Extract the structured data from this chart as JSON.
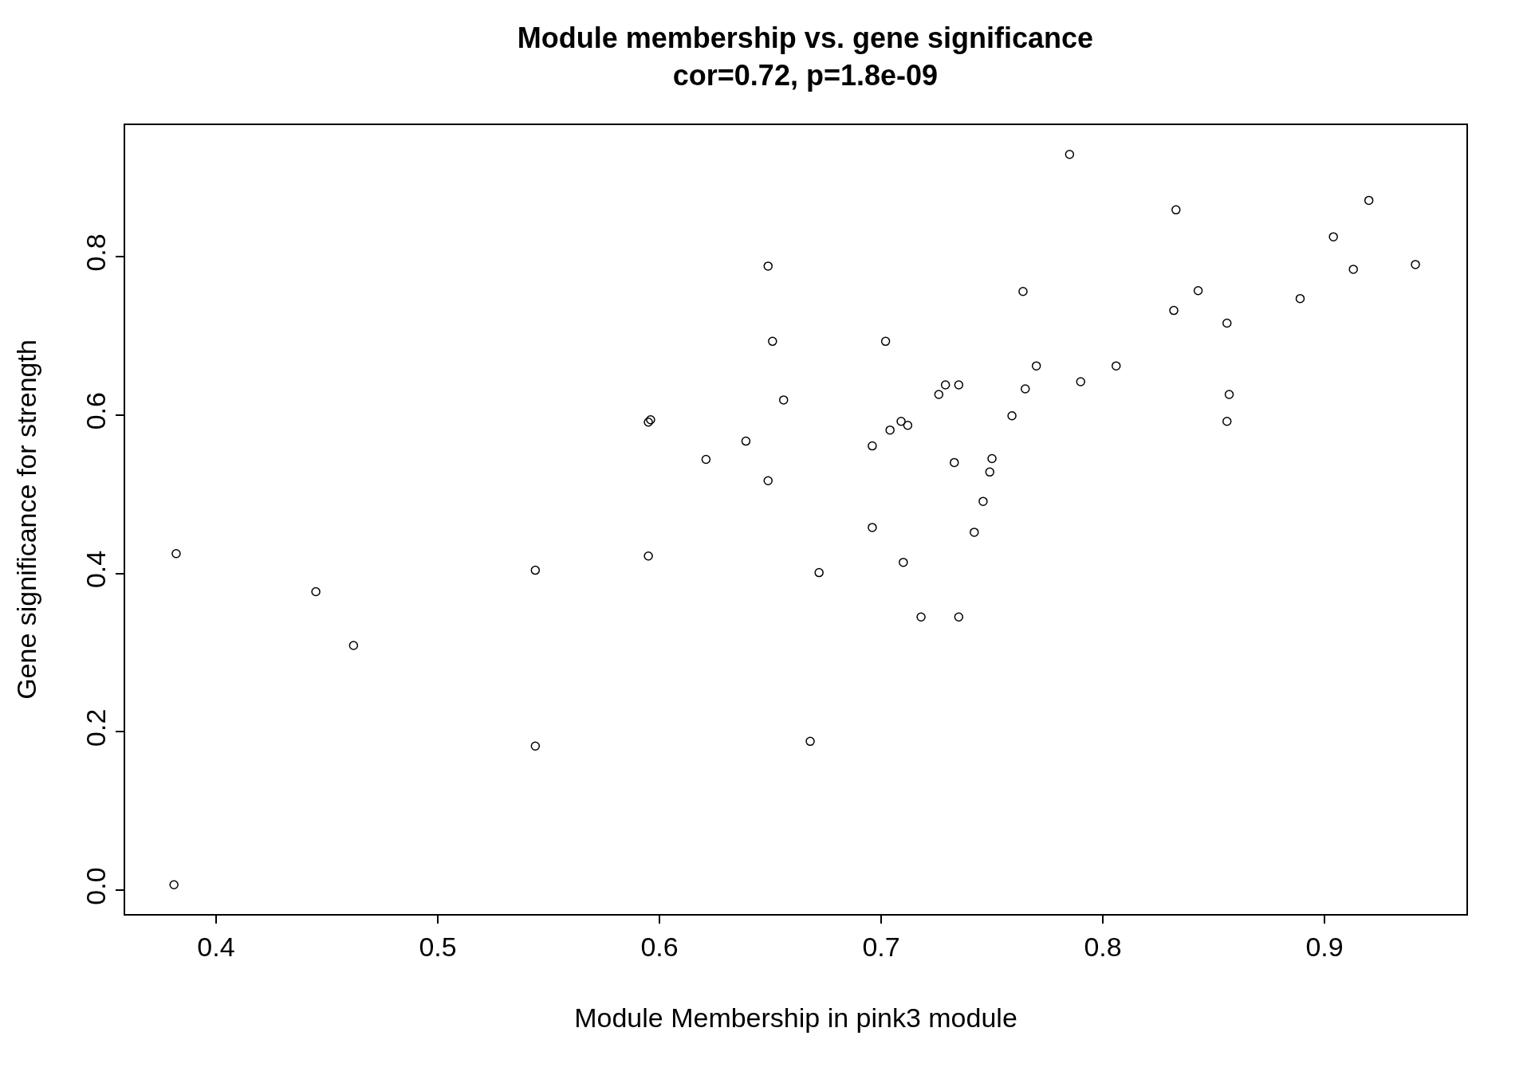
{
  "chart_data": {
    "type": "scatter",
    "title": "Module membership vs. gene significance",
    "subtitle": "cor=0.72, p=1.8e-09",
    "xlabel": "Module Membership in pink3 module",
    "ylabel": "Gene significance for strength",
    "series": [
      {
        "color": "#000000",
        "x": [
          0.785,
          0.833,
          0.92,
          0.904,
          0.913,
          0.941,
          0.889,
          0.843,
          0.832,
          0.856,
          0.857,
          0.856,
          0.806,
          0.79,
          0.764,
          0.77,
          0.765,
          0.759,
          0.75,
          0.749,
          0.746,
          0.742,
          0.735,
          0.718,
          0.71,
          0.696,
          0.696,
          0.702,
          0.704,
          0.709,
          0.712,
          0.726,
          0.729,
          0.735,
          0.733,
          0.649,
          0.651,
          0.656,
          0.649,
          0.639,
          0.621,
          0.595,
          0.596,
          0.595,
          0.672,
          0.668,
          0.544,
          0.544,
          0.462,
          0.445,
          0.382,
          0.381
        ],
        "values": [
          0.929,
          0.859,
          0.871,
          0.825,
          0.784,
          0.79,
          0.747,
          0.757,
          0.732,
          0.716,
          0.626,
          0.592,
          0.662,
          0.642,
          0.756,
          0.662,
          0.633,
          0.599,
          0.545,
          0.528,
          0.491,
          0.452,
          0.345,
          0.345,
          0.414,
          0.561,
          0.458,
          0.693,
          0.581,
          0.592,
          0.587,
          0.626,
          0.638,
          0.638,
          0.54,
          0.788,
          0.693,
          0.619,
          0.517,
          0.567,
          0.544,
          0.591,
          0.594,
          0.422,
          0.401,
          0.188,
          0.404,
          0.182,
          0.309,
          0.377,
          0.425,
          0.007
        ]
      }
    ],
    "marker": "circle",
    "legend": false,
    "xlim": [
      0.359,
      0.964
    ],
    "xticks": [
      0.4,
      0.5,
      0.6,
      0.7,
      0.8,
      0.9
    ],
    "ylim": [
      -0.03,
      0.966
    ],
    "yticks": [
      {
        "value": 0,
        "label": "0.0"
      },
      0.2,
      0.4,
      0.6,
      0.8
    ]
  }
}
